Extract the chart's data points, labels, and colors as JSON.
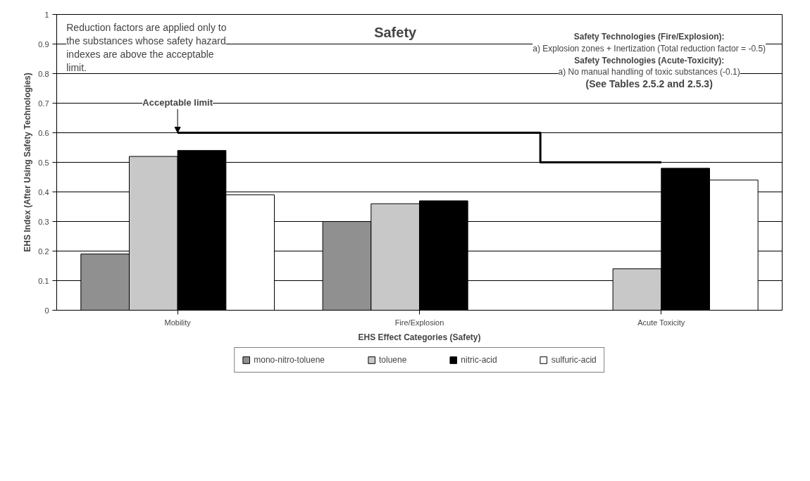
{
  "chart_data": {
    "type": "bar",
    "title": "Safety",
    "xlabel": "EHS Effect Categories (Safety)",
    "ylabel": "EHS Index (After Using Safety Technologies)",
    "categories": [
      "Mobility",
      "Fire/Explosion",
      "Acute Toxicity"
    ],
    "series": [
      {
        "name": "mono-nitro-toluene",
        "color": "#909090",
        "values": [
          0.19,
          0.3,
          null
        ]
      },
      {
        "name": "toluene",
        "color": "#c8c8c8",
        "values": [
          0.52,
          0.36,
          0.14
        ]
      },
      {
        "name": "nitric-acid",
        "color": "#000000",
        "values": [
          0.54,
          0.37,
          0.48
        ]
      },
      {
        "name": "sulfuric-acid",
        "color": "#ffffff",
        "values": [
          0.39,
          null,
          0.44
        ]
      },
      {
        "type": "step",
        "color": "#000000",
        "values": [
          0.6,
          0.6,
          0.5
        ]
      }
    ],
    "ylim": [
      0,
      1
    ],
    "yticks": [
      0,
      0.1,
      0.2,
      0.3,
      0.4,
      0.5,
      0.6,
      0.7,
      0.8,
      0.9,
      1
    ],
    "grid": "y",
    "legend": "bottom",
    "annotations": [
      {
        "text": "Acceptable limit",
        "x": "Mobility",
        "y": 0.6
      },
      "Reduction factors are applied only to the substances whose safety hazard indexes are above the acceptable limit.",
      "Safety Technologies (Fire/Explosion):",
      "a) Explosion zones + Inertization (Total reduction factor = -0.5)",
      "Safety Technologies (Acute-Toxicity):",
      "a) No manual handling of toxic substances (-0.1)",
      "(See Tables 2.5.2 and 2.5.3)"
    ]
  }
}
